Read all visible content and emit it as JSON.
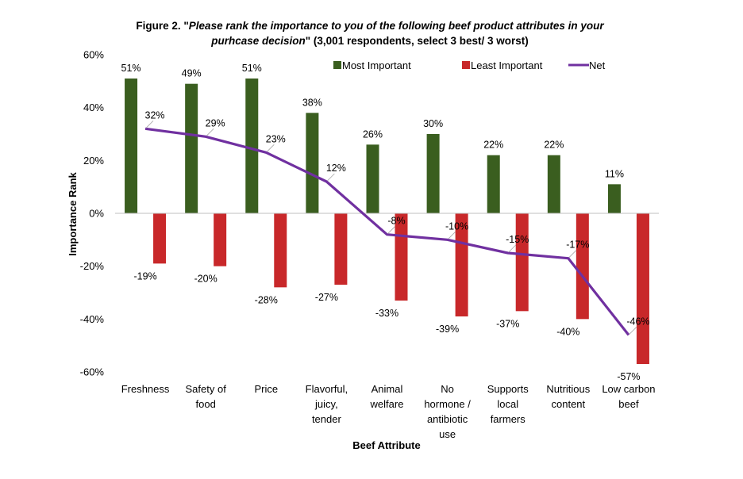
{
  "title": {
    "prefix": "Figure 2. \"",
    "italic1": "Please rank the importance to you of the following beef product attributes in your",
    "italic2": "purhcase decision",
    "suffix": "\" (3,001 respondents, select 3 best/ 3 worst)"
  },
  "colors": {
    "most": "#3a5e1f",
    "least": "#c8282a",
    "net": "#7030a0",
    "axis": "#bfbfbf"
  },
  "chart_data": {
    "type": "bar",
    "xlabel": "Beef Attribute",
    "ylabel": "Importance Rank",
    "ylim": [
      -60,
      60
    ],
    "yticks": [
      60,
      40,
      20,
      0,
      -20,
      -40,
      -60
    ],
    "ytick_labels": [
      "60%",
      "40%",
      "20%",
      "0%",
      "-20%",
      "-40%",
      "-60%"
    ],
    "categories": [
      [
        "Freshness"
      ],
      [
        "Safety of",
        "food"
      ],
      [
        "Price"
      ],
      [
        "Flavorful,",
        "juicy,",
        "tender"
      ],
      [
        "Animal",
        "welfare"
      ],
      [
        "No",
        "hormone /",
        "antibiotic",
        "use"
      ],
      [
        "Supports",
        "local",
        "farmers"
      ],
      [
        "Nutritious",
        "content"
      ],
      [
        "Low carbon",
        "beef"
      ]
    ],
    "series": [
      {
        "name": "Most Important",
        "kind": "bar",
        "values": [
          51,
          49,
          51,
          38,
          26,
          30,
          22,
          22,
          11
        ]
      },
      {
        "name": "Least Important",
        "kind": "bar",
        "values": [
          -19,
          -20,
          -28,
          -27,
          -33,
          -39,
          -37,
          -40,
          -57
        ]
      },
      {
        "name": "Net",
        "kind": "line",
        "values": [
          32,
          29,
          23,
          12,
          -8,
          -10,
          -15,
          -17,
          -46
        ]
      }
    ],
    "legend": "top"
  }
}
